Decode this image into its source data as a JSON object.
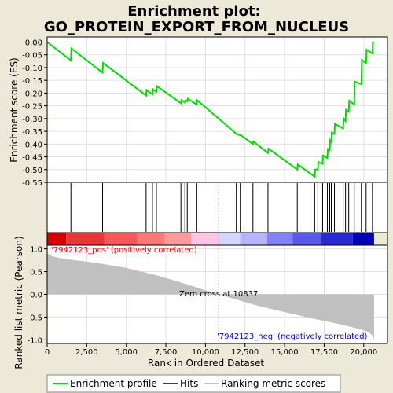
{
  "title_line1": "Enrichment plot:",
  "title_line2": "GO_PROTEIN_EXPORT_FROM_NUCLEUS",
  "colors": {
    "background": "#ece9d8",
    "plot_bg": "#ffffff",
    "profile_line": "#00dd00",
    "hits": "#000000",
    "metric_fill": "#c0c0c0",
    "pos_label": "#ff0000",
    "neg_label": "#0000ff"
  },
  "legend": {
    "profile": "Enrichment profile",
    "hits": "Hits",
    "metric": "Ranking metric scores"
  },
  "chart_data": [
    {
      "type": "line",
      "name": "enrichment-profile",
      "ylabel": "Enrichment score (ES)",
      "xlim": [
        0,
        21500
      ],
      "ylim": [
        -0.55,
        0.02
      ],
      "yticks": [
        0.0,
        -0.05,
        -0.1,
        -0.15,
        -0.2,
        -0.25,
        -0.3,
        -0.35,
        -0.4,
        -0.45,
        -0.5,
        -0.55
      ],
      "ytick_labels": [
        "0.00",
        "-0.05",
        "-0.10",
        "-0.15",
        "-0.20",
        "-0.25",
        "-0.30",
        "-0.35",
        "-0.40",
        "-0.45",
        "-0.50",
        "-0.55"
      ],
      "grid": true,
      "points": [
        [
          0,
          0.0
        ],
        [
          1500,
          -0.072
        ],
        [
          1530,
          -0.025
        ],
        [
          3500,
          -0.12
        ],
        [
          3530,
          -0.082
        ],
        [
          6250,
          -0.21
        ],
        [
          6280,
          -0.188
        ],
        [
          6650,
          -0.205
        ],
        [
          6680,
          -0.185
        ],
        [
          6900,
          -0.195
        ],
        [
          6930,
          -0.173
        ],
        [
          8450,
          -0.24
        ],
        [
          8480,
          -0.228
        ],
        [
          8700,
          -0.238
        ],
        [
          8730,
          -0.228
        ],
        [
          8850,
          -0.232
        ],
        [
          8880,
          -0.222
        ],
        [
          9450,
          -0.245
        ],
        [
          9480,
          -0.228
        ],
        [
          11950,
          -0.36
        ],
        [
          11980,
          -0.362
        ],
        [
          12200,
          -0.365
        ],
        [
          12230,
          -0.365
        ],
        [
          13000,
          -0.4
        ],
        [
          13030,
          -0.39
        ],
        [
          13950,
          -0.435
        ],
        [
          13980,
          -0.418
        ],
        [
          15800,
          -0.5
        ],
        [
          15830,
          -0.48
        ],
        [
          16900,
          -0.528
        ],
        [
          16930,
          -0.5
        ],
        [
          17100,
          -0.5
        ],
        [
          17130,
          -0.47
        ],
        [
          17400,
          -0.478
        ],
        [
          17430,
          -0.445
        ],
        [
          17700,
          -0.455
        ],
        [
          17730,
          -0.42
        ],
        [
          17850,
          -0.425
        ],
        [
          17880,
          -0.385
        ],
        [
          17950,
          -0.39
        ],
        [
          17980,
          -0.355
        ],
        [
          18150,
          -0.36
        ],
        [
          18180,
          -0.32
        ],
        [
          18700,
          -0.34
        ],
        [
          18730,
          -0.3
        ],
        [
          18850,
          -0.31
        ],
        [
          18880,
          -0.265
        ],
        [
          19050,
          -0.272
        ],
        [
          19080,
          -0.23
        ],
        [
          19400,
          -0.245
        ],
        [
          19430,
          -0.155
        ],
        [
          19850,
          -0.165
        ],
        [
          19880,
          -0.07
        ],
        [
          20150,
          -0.082
        ],
        [
          20180,
          -0.03
        ],
        [
          20550,
          -0.045
        ],
        [
          20580,
          0.003
        ]
      ]
    },
    {
      "type": "scatter",
      "name": "hits",
      "x": [
        1500,
        3500,
        6250,
        6650,
        6900,
        8450,
        8700,
        8850,
        9450,
        11950,
        12200,
        13000,
        13950,
        15800,
        16900,
        17100,
        17400,
        17700,
        17850,
        17950,
        18150,
        18700,
        18850,
        19050,
        19400,
        19850,
        20150,
        20550
      ]
    },
    {
      "type": "area",
      "name": "ranked-list-metric",
      "xlabel": "Rank in Ordered Dataset",
      "ylabel": "Ranked list metric (Pearson)",
      "xlim": [
        0,
        21500
      ],
      "ylim": [
        -1.08,
        1.08
      ],
      "yticks": [
        1.0,
        0.5,
        0.0,
        -0.5,
        -1.0
      ],
      "ytick_labels": [
        "1.0",
        "0.5",
        "0.0",
        "-0.5",
        "-1.0"
      ],
      "xticks": [
        0,
        2500,
        5000,
        7500,
        10000,
        12500,
        15000,
        17500,
        20000
      ],
      "xtick_labels": [
        "0",
        "2,500",
        "5,000",
        "7,500",
        "10,000",
        "12,500",
        "15,000",
        "17,500",
        "20,000"
      ],
      "grid": true,
      "points": [
        [
          0,
          0.93
        ],
        [
          100,
          0.88
        ],
        [
          300,
          0.84
        ],
        [
          800,
          0.8
        ],
        [
          1500,
          0.76
        ],
        [
          2500,
          0.72
        ],
        [
          3500,
          0.67
        ],
        [
          5000,
          0.58
        ],
        [
          6000,
          0.5
        ],
        [
          7000,
          0.41
        ],
        [
          8000,
          0.31
        ],
        [
          9000,
          0.2
        ],
        [
          10000,
          0.09
        ],
        [
          10837,
          0.0
        ],
        [
          12000,
          -0.12
        ],
        [
          13000,
          -0.22
        ],
        [
          14000,
          -0.31
        ],
        [
          15000,
          -0.39
        ],
        [
          16000,
          -0.47
        ],
        [
          17000,
          -0.55
        ],
        [
          18000,
          -0.62
        ],
        [
          19000,
          -0.7
        ],
        [
          19800,
          -0.77
        ],
        [
          20300,
          -0.83
        ],
        [
          20550,
          -0.9
        ],
        [
          20650,
          -1.0
        ]
      ],
      "zero_cross": 10837,
      "zero_cross_label": "Zero cross at 10837",
      "pos_label": "'7942123_pos' (positively correlated)",
      "neg_label": "'7942123_neg' (negatively correlated)"
    },
    {
      "type": "heatmap",
      "name": "rank-color-bar",
      "segments": [
        {
          "start": 0,
          "end": 1200,
          "color": "#d40000"
        },
        {
          "start": 1200,
          "end": 3600,
          "color": "#e83838"
        },
        {
          "start": 3600,
          "end": 5700,
          "color": "#f45858"
        },
        {
          "start": 5700,
          "end": 7400,
          "color": "#fb7878"
        },
        {
          "start": 7400,
          "end": 9100,
          "color": "#fd9a9a"
        },
        {
          "start": 9100,
          "end": 10837,
          "color": "#ffc4e6"
        },
        {
          "start": 10837,
          "end": 12200,
          "color": "#d4d4ff"
        },
        {
          "start": 12200,
          "end": 13900,
          "color": "#b4b4ff"
        },
        {
          "start": 13900,
          "end": 15500,
          "color": "#8282f6"
        },
        {
          "start": 15500,
          "end": 17300,
          "color": "#5a5aea"
        },
        {
          "start": 17300,
          "end": 19300,
          "color": "#2a2ad0"
        },
        {
          "start": 19300,
          "end": 20650,
          "color": "#0000b8"
        }
      ]
    }
  ]
}
